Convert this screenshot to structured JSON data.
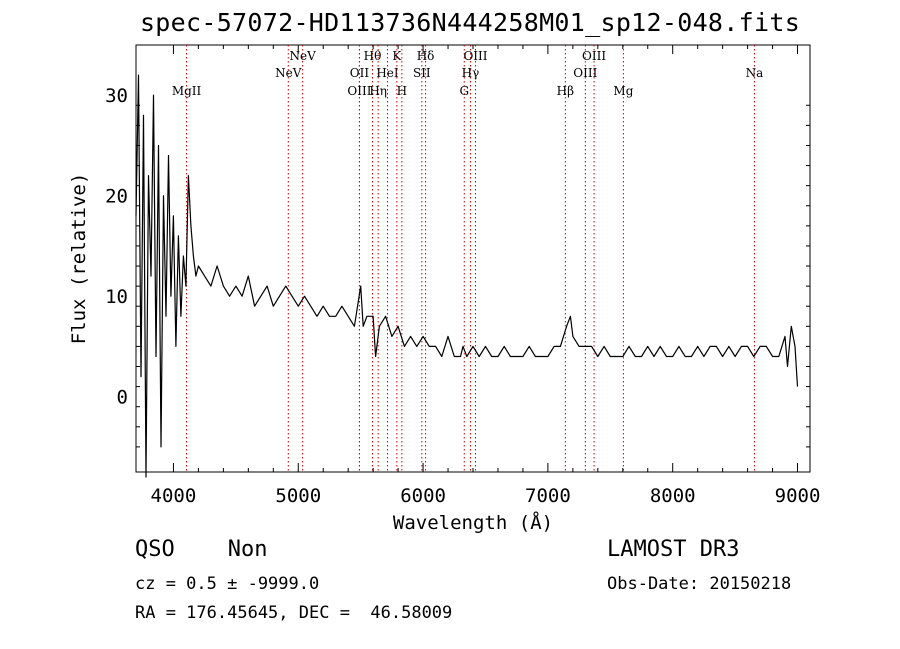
{
  "chart_data": {
    "type": "line",
    "title": "spec-57072-HD113736N444258M01_sp12-048.fits",
    "xlabel": "Wavelength (Å)",
    "ylabel": "Flux (relative)",
    "xlim": [
      3700,
      9100
    ],
    "ylim": [
      -7.5,
      35
    ],
    "xticks": [
      4000,
      5000,
      6000,
      7000,
      8000,
      9000
    ],
    "yticks": [
      0,
      10,
      20,
      30
    ],
    "grid": false,
    "series": [
      {
        "x": [
          3700,
          3720,
          3740,
          3760,
          3780,
          3800,
          3820,
          3840,
          3860,
          3880,
          3900,
          3920,
          3940,
          3960,
          3980,
          4000,
          4020,
          4040,
          4060,
          4080,
          4100,
          4120,
          4140,
          4160,
          4180,
          4200,
          4250,
          4300,
          4350,
          4400,
          4450,
          4500,
          4550,
          4600,
          4650,
          4700,
          4750,
          4800,
          4850,
          4900,
          4950,
          5000,
          5050,
          5100,
          5150,
          5200,
          5250,
          5300,
          5350,
          5400,
          5450,
          5500,
          5520,
          5550,
          5600,
          5620,
          5650,
          5700,
          5750,
          5800,
          5850,
          5900,
          5950,
          6000,
          6050,
          6100,
          6150,
          6200,
          6250,
          6300,
          6320,
          6350,
          6400,
          6450,
          6500,
          6550,
          6600,
          6650,
          6700,
          6750,
          6800,
          6850,
          6900,
          6950,
          7000,
          7050,
          7100,
          7150,
          7180,
          7200,
          7250,
          7300,
          7350,
          7400,
          7450,
          7500,
          7550,
          7600,
          7650,
          7700,
          7750,
          7800,
          7850,
          7900,
          7950,
          8000,
          8050,
          8100,
          8150,
          8200,
          8250,
          8300,
          8350,
          8400,
          8450,
          8500,
          8550,
          8600,
          8650,
          8700,
          8750,
          8800,
          8850,
          8900,
          8920,
          8950,
          8980,
          9000
        ],
        "y": [
          18,
          32,
          2,
          28,
          -8,
          22,
          12,
          30,
          4,
          25,
          -5,
          20,
          8,
          24,
          10,
          18,
          5,
          16,
          8,
          14,
          11,
          22,
          17,
          14,
          12,
          13,
          12,
          11,
          13,
          11,
          10,
          11,
          10,
          12,
          9,
          10,
          11,
          9,
          10,
          11,
          10,
          9,
          10,
          9,
          8,
          9,
          8,
          8,
          9,
          8,
          7,
          11,
          7,
          8,
          8,
          4,
          7,
          8,
          6,
          7,
          5,
          6,
          5,
          6,
          5,
          5,
          4,
          6,
          4,
          4,
          5,
          4,
          5,
          4,
          5,
          4,
          4,
          5,
          4,
          4,
          4,
          5,
          4,
          4,
          4,
          5,
          5,
          7,
          8,
          6,
          5,
          5,
          5,
          4,
          5,
          4,
          4,
          4,
          5,
          4,
          4,
          5,
          4,
          5,
          4,
          4,
          5,
          4,
          4,
          5,
          4,
          5,
          5,
          4,
          5,
          4,
          5,
          5,
          4,
          5,
          5,
          4,
          4,
          6,
          3,
          7,
          5,
          1
        ]
      }
    ],
    "lines": [
      {
        "x": 4105,
        "label": "MgII",
        "row": 2
      },
      {
        "x": 4920,
        "label": "NeV",
        "row": 1
      },
      {
        "x": 5035,
        "label": "NeV",
        "row": 0
      },
      {
        "x": 5490,
        "label": "OII",
        "row": 1
      },
      {
        "x": 5490,
        "label": "OIII",
        "row": 2
      },
      {
        "x": 5595,
        "label": "Hθ",
        "row": 0
      },
      {
        "x": 5640,
        "label": "Hη",
        "row": 2
      },
      {
        "x": 5715,
        "label": "HeI",
        "row": 1
      },
      {
        "x": 5790,
        "label": "K",
        "row": 0
      },
      {
        "x": 5830,
        "label": "H",
        "row": 2
      },
      {
        "x": 5990,
        "label": "SII",
        "row": 1
      },
      {
        "x": 6020,
        "label": "Hδ",
        "row": 0
      },
      {
        "x": 6330,
        "label": "G",
        "row": 2
      },
      {
        "x": 6380,
        "label": "Hγ",
        "row": 1
      },
      {
        "x": 6420,
        "label": "OIII",
        "row": 0
      },
      {
        "x": 7140,
        "label": "Hβ",
        "row": 2
      },
      {
        "x": 7300,
        "label": "OIII",
        "row": 1
      },
      {
        "x": 7370,
        "label": "OIII",
        "row": 0
      },
      {
        "x": 7605,
        "label": "Mg",
        "row": 2
      },
      {
        "x": 8655,
        "label": "Na",
        "row": 1
      }
    ]
  },
  "info": {
    "class": "QSO    Non",
    "cz": "cz = 0.5 ± -9999.0",
    "radec": "RA = 176.45645, DEC =  46.58009",
    "survey": "LAMOST DR3",
    "obs_date": "Obs-Date: 20150218"
  },
  "colors": {
    "line_marker": "#cc0000",
    "spectrum": "#000000"
  }
}
